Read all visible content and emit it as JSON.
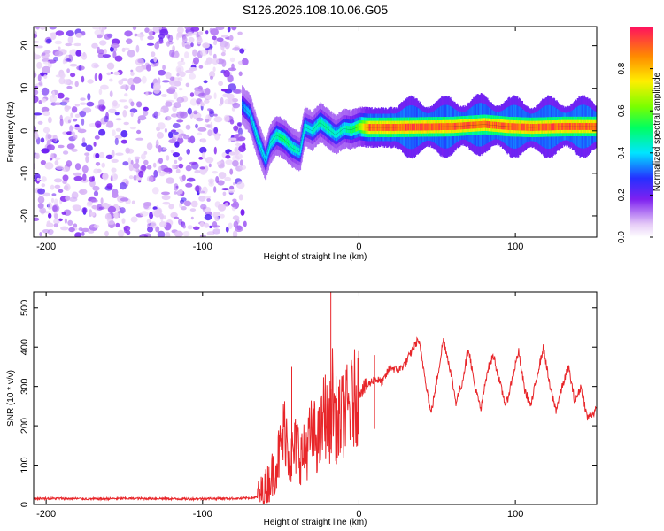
{
  "title": "S126.2026.108.10.06.G05",
  "chart_data": [
    {
      "type": "heatmap",
      "name": "spectrogram",
      "xlabel": "Height of straight line (km)",
      "ylabel": "Frequency (Hz)",
      "xlim": [
        -208,
        152
      ],
      "ylim": [
        -25,
        24.5
      ],
      "xticks": [
        -200,
        -100,
        0,
        100
      ],
      "xtick_labels": [
        "-200",
        "-100",
        "0",
        "100"
      ],
      "yticks": [
        20,
        10,
        0,
        -10,
        -20
      ],
      "ytick_labels": [
        "20",
        "10",
        "0",
        "-10",
        "-20"
      ],
      "noise_region_x": [
        -208,
        -75
      ],
      "ridge": {
        "x": [
          -75,
          -70,
          -65,
          -60,
          -57,
          -53,
          -48,
          -43,
          -38,
          -35,
          -30,
          -25,
          -20,
          -15,
          -10,
          -5,
          0,
          5,
          20,
          40,
          60,
          80,
          95,
          110,
          130,
          152
        ],
        "freq_hz": [
          6,
          4,
          -2,
          -7,
          -3,
          -1,
          -2,
          -4,
          -5,
          1,
          0,
          2,
          0.5,
          -1,
          0.5,
          0.2,
          1,
          0.8,
          0.8,
          0.9,
          1,
          1.5,
          1,
          0.8,
          1,
          1
        ],
        "amplitude": [
          0.35,
          0.4,
          0.45,
          0.4,
          0.45,
          0.5,
          0.55,
          0.5,
          0.45,
          0.45,
          0.45,
          0.5,
          0.5,
          0.45,
          0.5,
          0.55,
          0.65,
          0.95,
          0.98,
          0.98,
          0.97,
          0.96,
          0.98,
          0.97,
          0.98,
          0.98
        ]
      },
      "colorbar": {
        "label": "Normalized spectral amplitude",
        "range": [
          0,
          1
        ],
        "ticks": [
          0.0,
          0.2,
          0.4,
          0.6,
          0.8
        ],
        "tick_labels": [
          "0.0",
          "0.2",
          "0.4",
          "0.6",
          "0.8"
        ]
      }
    },
    {
      "type": "line",
      "name": "snr",
      "xlabel": "Height of straight line (km)",
      "ylabel": "SNR (10 * v/v)",
      "xlim": [
        -208,
        152
      ],
      "ylim": [
        0,
        540
      ],
      "xticks": [
        -200,
        -100,
        0,
        100
      ],
      "xtick_labels": [
        "-200",
        "-100",
        "0",
        "100"
      ],
      "yticks": [
        0,
        100,
        200,
        300,
        400,
        500
      ],
      "ytick_labels": [
        "0",
        "100",
        "200",
        "300",
        "400",
        "500"
      ],
      "color": "#e8262a",
      "series": [
        {
          "name": "SNR",
          "x": [
            -208,
            -190,
            -170,
            -150,
            -130,
            -110,
            -90,
            -75,
            -65,
            -60,
            -55,
            -50,
            -47,
            -44,
            -40,
            -36,
            -30,
            -25,
            -22,
            -19,
            -17,
            -14,
            -10,
            -5,
            0,
            5,
            10,
            15,
            20,
            25,
            30,
            35,
            38,
            42,
            46,
            50,
            54,
            58,
            62,
            66,
            70,
            74,
            78,
            82,
            86,
            90,
            94,
            98,
            102,
            106,
            110,
            114,
            118,
            122,
            126,
            130,
            134,
            138,
            142,
            146,
            152
          ],
          "y": [
            15,
            15,
            14,
            15,
            15,
            14,
            15,
            15,
            18,
            40,
            80,
            140,
            200,
            110,
            150,
            120,
            180,
            160,
            240,
            190,
            280,
            200,
            230,
            250,
            290,
            300,
            320,
            310,
            350,
            340,
            360,
            400,
            420,
            330,
            230,
            320,
            420,
            350,
            260,
            310,
            400,
            300,
            240,
            340,
            380,
            310,
            250,
            320,
            390,
            290,
            250,
            330,
            400,
            300,
            240,
            300,
            350,
            260,
            300,
            220,
            240
          ],
          "spikes": [
            {
              "x": -43,
              "y": 350
            },
            {
              "x": -18,
              "y": 540
            },
            {
              "x": -13,
              "y": 300
            },
            {
              "x": 10,
              "y": 380
            }
          ]
        }
      ]
    }
  ]
}
